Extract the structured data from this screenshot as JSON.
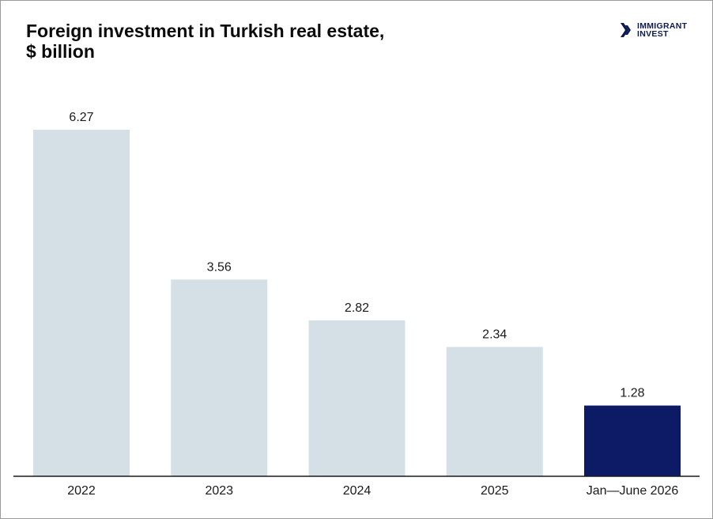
{
  "logo": {
    "line1": "IMMIGRANT",
    "line2": "INVEST",
    "icon": "double-chevron-right-icon",
    "color": "#0d1b4f"
  },
  "chart_data": {
    "type": "bar",
    "title_line1": "Foreign investment in Turkish real estate,",
    "title_line2": "$ billion",
    "categories": [
      "2022",
      "2023",
      "2024",
      "2025",
      "Jan—June 2026"
    ],
    "values": [
      6.27,
      3.56,
      2.82,
      2.34,
      1.28
    ],
    "value_labels": [
      "6.27",
      "3.56",
      "2.82",
      "2.34",
      "1.28"
    ],
    "colors": [
      "#d4dfe6",
      "#d4dfe6",
      "#d4dfe6",
      "#d4dfe6",
      "#0d1a66"
    ],
    "ylim": [
      0,
      6.27
    ],
    "grid": false,
    "legend": "none"
  }
}
